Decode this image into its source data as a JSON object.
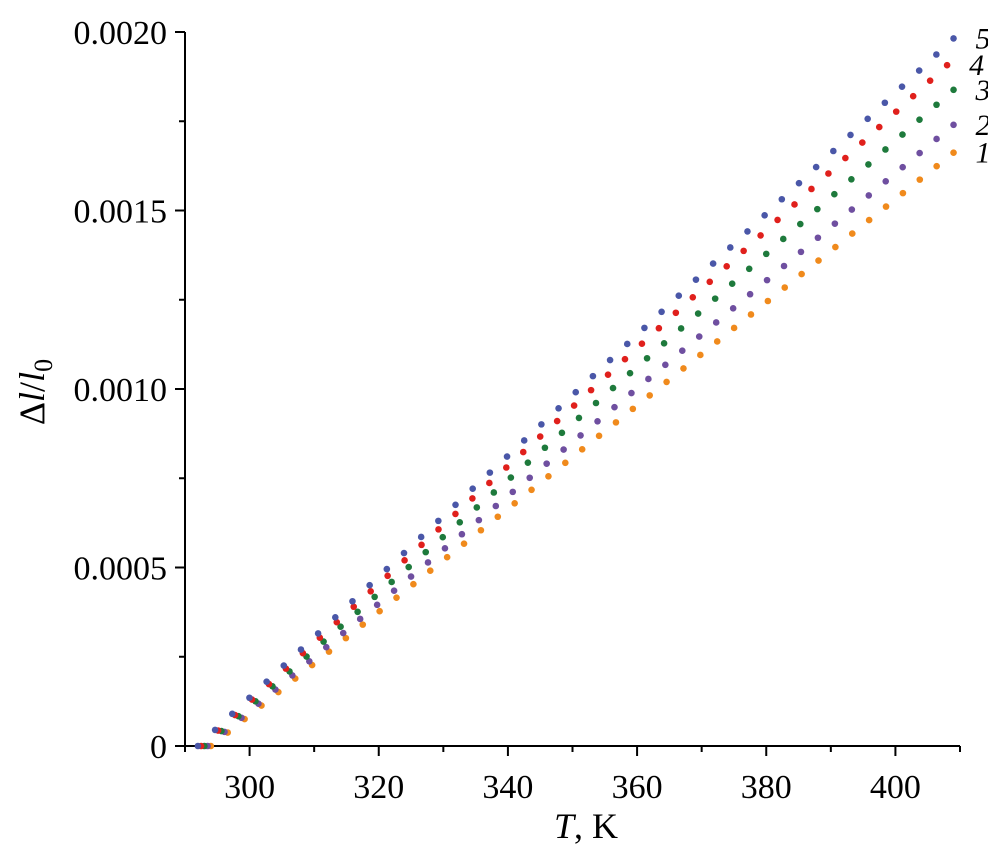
{
  "chart_data": {
    "type": "scatter",
    "xlabel": {
      "italic": "T",
      "rest": ", K"
    },
    "ylabel": {
      "delta": "Δ",
      "l": "l",
      "slash": "/",
      "l0": "l",
      "sub": "0"
    },
    "xlim": [
      290,
      410
    ],
    "ylim": [
      0,
      0.002
    ],
    "x_ticks": [
      300,
      320,
      340,
      360,
      380,
      400
    ],
    "x_tick_labels": [
      "300",
      "320",
      "340",
      "360",
      "380",
      "400"
    ],
    "x_minor_step": 10,
    "y_ticks": [
      0,
      0.0005,
      0.001,
      0.0015,
      0.002
    ],
    "y_tick_labels": [
      "0",
      "0.0005",
      "0.0010",
      "0.0015",
      "0.0020"
    ],
    "y_minor_step": 0.00025,
    "grid": false,
    "series": [
      {
        "name": "1",
        "color": "#f08a1c",
        "x_start": 294,
        "x_end": 409,
        "points": 45,
        "x": [
          294,
          409
        ],
        "y": [
          0,
          0.001662
        ]
      },
      {
        "name": "2",
        "color": "#6f4fa0",
        "x_start": 293.5,
        "x_end": 409,
        "points": 45,
        "x": [
          293.5,
          409
        ],
        "y": [
          0,
          0.00174
        ]
      },
      {
        "name": "3",
        "color": "#1e7a3c",
        "x_start": 293,
        "x_end": 409,
        "points": 45,
        "x": [
          293,
          409
        ],
        "y": [
          0,
          0.001838
        ]
      },
      {
        "name": "4",
        "color": "#e0201c",
        "x_start": 292.5,
        "x_end": 408,
        "points": 45,
        "x": [
          292.5,
          408
        ],
        "y": [
          0,
          0.001907
        ]
      },
      {
        "name": "5",
        "color": "#4a57a8",
        "x_start": 292,
        "x_end": 409,
        "points": 45,
        "x": [
          292,
          409
        ],
        "y": [
          0,
          0.001982
        ]
      }
    ]
  }
}
